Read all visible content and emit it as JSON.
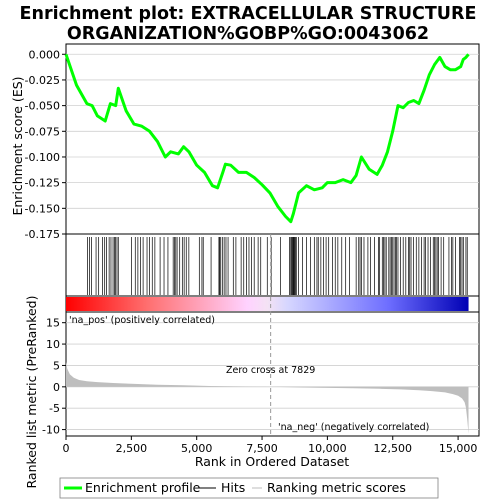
{
  "chart_data": {
    "type": "line",
    "title_line1": "Enrichment plot: EXTRACELLULAR STRUCTURE",
    "title_line2": "ORGANIZATION%GOBP%GO:0043062",
    "es_panel": {
      "ylabel": "Enrichment score (ES)",
      "ylim": [
        -0.175,
        0.01
      ],
      "yticks": [
        0.0,
        -0.025,
        -0.05,
        -0.075,
        -0.1,
        -0.125,
        -0.15,
        -0.175
      ],
      "ytick_labels": [
        "0.000",
        "-0.025",
        "-0.050",
        "-0.075",
        "-0.100",
        "-0.125",
        "-0.150",
        "-0.175"
      ],
      "line_color": "#00ff00",
      "series": {
        "name": "Enrichment profile",
        "x": [
          0,
          400,
          800,
          1000,
          1200,
          1500,
          1700,
          1900,
          2000,
          2300,
          2600,
          2900,
          3200,
          3500,
          3800,
          4000,
          4300,
          4500,
          4700,
          5000,
          5300,
          5600,
          5800,
          6000,
          6100,
          6300,
          6600,
          6900,
          7200,
          7500,
          7800,
          8100,
          8400,
          8600,
          8700,
          8900,
          9200,
          9500,
          9800,
          10000,
          10300,
          10600,
          10900,
          11100,
          11300,
          11600,
          11900,
          12100,
          12300,
          12500,
          12700,
          12900,
          13100,
          13300,
          13500,
          13700,
          13900,
          14100,
          14300,
          14500,
          14700,
          14900,
          15100,
          15200,
          15300,
          15400
        ],
        "y": [
          0.0,
          -0.03,
          -0.048,
          -0.05,
          -0.06,
          -0.065,
          -0.048,
          -0.05,
          -0.033,
          -0.055,
          -0.068,
          -0.07,
          -0.075,
          -0.085,
          -0.1,
          -0.095,
          -0.097,
          -0.09,
          -0.095,
          -0.108,
          -0.115,
          -0.128,
          -0.13,
          -0.115,
          -0.107,
          -0.108,
          -0.115,
          -0.115,
          -0.12,
          -0.127,
          -0.135,
          -0.148,
          -0.158,
          -0.163,
          -0.155,
          -0.135,
          -0.128,
          -0.132,
          -0.13,
          -0.125,
          -0.125,
          -0.122,
          -0.125,
          -0.118,
          -0.1,
          -0.112,
          -0.117,
          -0.108,
          -0.095,
          -0.075,
          -0.05,
          -0.052,
          -0.047,
          -0.045,
          -0.048,
          -0.035,
          -0.02,
          -0.01,
          -0.003,
          -0.012,
          -0.015,
          -0.015,
          -0.012,
          -0.005,
          -0.003,
          0.0
        ]
      }
    },
    "hits_panel": {
      "hit_ranks": [
        820,
        900,
        980,
        1150,
        1250,
        1400,
        1480,
        1550,
        1650,
        1720,
        1800,
        1850,
        1900,
        1950,
        2000,
        2500,
        2650,
        2750,
        2850,
        2950,
        3100,
        3200,
        3300,
        3400,
        3600,
        3750,
        3900,
        4100,
        4150,
        4200,
        4250,
        4350,
        4450,
        4520,
        4600,
        4700,
        5100,
        5200,
        5250,
        5550,
        5850,
        5880,
        5920,
        5980,
        6050,
        6120,
        6200,
        6400,
        6500,
        6700,
        6800,
        6900,
        7000,
        7100,
        7200,
        7350,
        7450,
        7700,
        7850,
        8200,
        8550,
        8600,
        8630,
        8660,
        8690,
        8720,
        8750,
        8780,
        8810,
        8900,
        9050,
        9200,
        9350,
        9500,
        9600,
        9650,
        9750,
        9850,
        9950,
        10050,
        10200,
        10300,
        10400,
        10550,
        10700,
        10850,
        11100,
        11200,
        11250,
        11300,
        11400,
        11550,
        11650,
        11800,
        11950,
        12000,
        12100,
        12150,
        12200,
        12250,
        12350,
        12400,
        12450,
        12500,
        12550,
        12600,
        12650,
        12700,
        12800,
        12900,
        13000,
        13100,
        13150,
        13200,
        13300,
        13400,
        13500,
        13600,
        13700,
        13750,
        13850,
        13950,
        14050,
        14100,
        14150,
        14200,
        14250,
        14350,
        14450,
        14650,
        14750,
        14800,
        14900,
        15050,
        15100,
        15150,
        15200,
        15300,
        15350
      ]
    },
    "metric_panel": {
      "ylabel": "Ranked list metric (PreRanked)",
      "ylim": [
        -11.5,
        17.5
      ],
      "yticks": [
        15,
        10,
        5,
        0,
        -5,
        -10
      ],
      "ytick_labels": [
        "15",
        "10",
        "5",
        "0",
        "-5",
        "-10"
      ],
      "pos_label": "'na_pos' (positively correlated)",
      "neg_label": "'na_neg' (negatively correlated)",
      "zero_cross_label": "Zero cross at 7829",
      "zero_cross": 7829,
      "fill_color": "#bebebe",
      "pos_label_color": "#cc0000",
      "neg_label_color": "#0000cc",
      "metric_curve": {
        "x": [
          0,
          50,
          150,
          300,
          500,
          800,
          1200,
          1800,
          2500,
          3500,
          4500,
          5500,
          6500,
          7829,
          9000,
          10000,
          11000,
          12000,
          12800,
          13500,
          14000,
          14500,
          14800,
          15000,
          15150,
          15250,
          15300,
          15350,
          15400
        ],
        "y": [
          5.8,
          4.2,
          2.9,
          2.1,
          1.6,
          1.3,
          1.1,
          0.9,
          0.7,
          0.5,
          0.35,
          0.2,
          0.1,
          0.0,
          -0.15,
          -0.25,
          -0.35,
          -0.45,
          -0.6,
          -0.8,
          -1.0,
          -1.3,
          -1.7,
          -2.1,
          -2.7,
          -3.6,
          -4.8,
          -7.5,
          -11.0
        ]
      }
    },
    "x_axis": {
      "xlabel": "Rank in Ordered Dataset",
      "xlim": [
        0,
        15800
      ],
      "xticks": [
        0,
        2500,
        5000,
        7500,
        10000,
        12500,
        15000
      ],
      "xtick_labels": [
        "0",
        "2,500",
        "5,000",
        "7,500",
        "10,000",
        "12,500",
        "15,000"
      ],
      "total_rank": 15400
    },
    "legend": {
      "placement": "bottom",
      "entries": [
        {
          "label": "Enrichment profile",
          "color": "#00ff00",
          "style": "thick-line"
        },
        {
          "label": "Hits",
          "color": "#000000",
          "style": "line"
        },
        {
          "label": "Ranking metric scores",
          "color": "#bebebe",
          "style": "line"
        }
      ]
    }
  }
}
